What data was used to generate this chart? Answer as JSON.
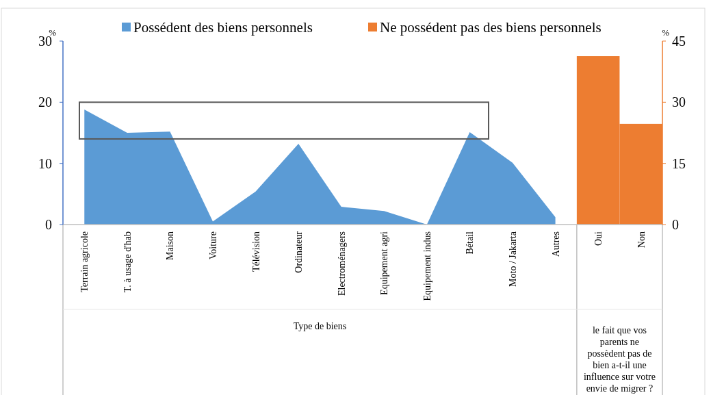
{
  "chart_data": {
    "type": "area",
    "categories": [
      "Terrain agricole",
      "T. à usage d'hab",
      "Maison",
      "Voiture",
      "Télévision",
      "Ordinateur",
      "Electroménagers",
      "Equipement agri",
      "Equipement indus",
      "Bétail",
      "Moto / Jakarta",
      "Autres",
      "Oui",
      "Non"
    ],
    "series": [
      {
        "name": "Possédent des biens personnels",
        "color": "#5b9bd5",
        "values": [
          18.8,
          15.0,
          15.2,
          0.5,
          5.4,
          13.2,
          2.9,
          2.2,
          0,
          15.1,
          10.1,
          1.2,
          null,
          null
        ]
      },
      {
        "name": "Ne possédent pas des biens personnels",
        "type": "bar",
        "axis": "y2",
        "color": "#ed7d31",
        "values": [
          null,
          null,
          null,
          null,
          null,
          null,
          null,
          null,
          null,
          null,
          null,
          null,
          41.3,
          24.7
        ]
      }
    ],
    "ylabel": "%",
    "y2label": "%",
    "xlabel": "Type de biens",
    "ylim": [
      0,
      30
    ],
    "yticks": [
      0,
      10,
      20,
      30
    ],
    "y2lim": [
      0,
      45
    ],
    "y2ticks": [
      0,
      15,
      30,
      45
    ],
    "legend": "top",
    "annotations": [
      "le fait que vos parents ne possèdent pas de bien a-t-il une influence sur votre envie de migrer ?"
    ]
  }
}
